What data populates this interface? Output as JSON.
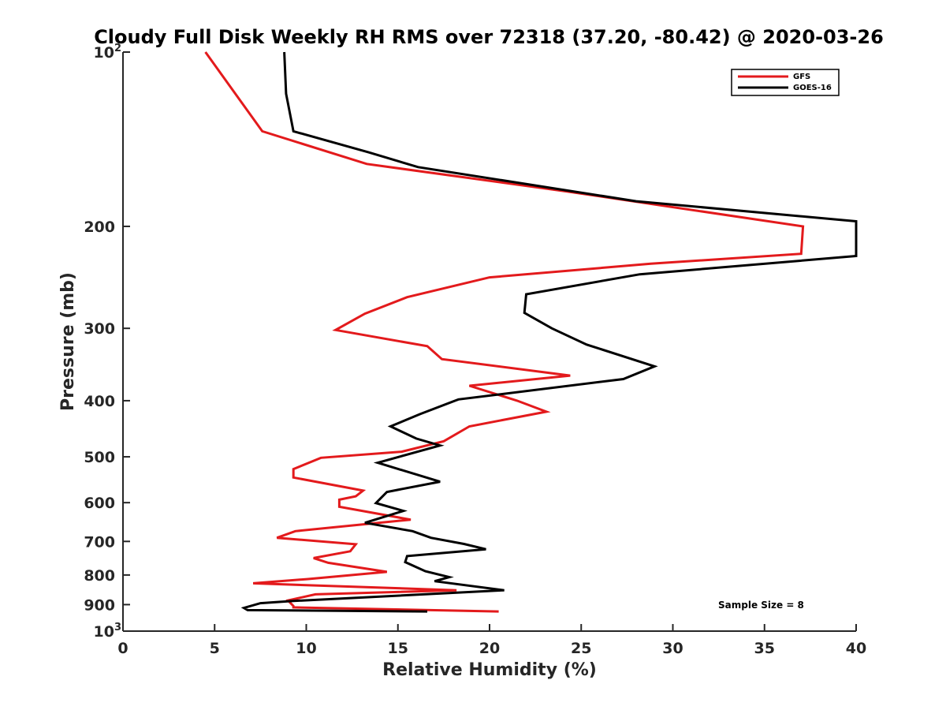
{
  "chart_data": {
    "type": "line",
    "title": "Cloudy Full Disk Weekly RH RMS over 72318 (37.20, -80.42) @ 2020-03-26",
    "xlabel": "Relative Humidity (%)",
    "ylabel": "Pressure (mb)",
    "xlim": [
      0,
      40
    ],
    "ylim": [
      100,
      1000
    ],
    "y_scale": "log",
    "y_reversed": true,
    "x_ticks": [
      0,
      5,
      10,
      15,
      20,
      25,
      30,
      35,
      40
    ],
    "y_ticks": [
      {
        "value": 100,
        "label": "10",
        "exp": "2"
      },
      {
        "value": 200,
        "label": "200"
      },
      {
        "value": 300,
        "label": "300"
      },
      {
        "value": 400,
        "label": "400"
      },
      {
        "value": 500,
        "label": "500"
      },
      {
        "value": 600,
        "label": "600"
      },
      {
        "value": 700,
        "label": "700"
      },
      {
        "value": 800,
        "label": "800"
      },
      {
        "value": 900,
        "label": "900"
      },
      {
        "value": 1000,
        "label": "10",
        "exp": "3"
      }
    ],
    "legend_position": "top-right",
    "annotation": "Sample Size = 8",
    "series": [
      {
        "name": "GFS",
        "color": "#e31a1c",
        "points": [
          [
            4.5,
            100
          ],
          [
            7.6,
            137
          ],
          [
            13.3,
            156
          ],
          [
            24.2,
            174
          ],
          [
            37.1,
            200
          ],
          [
            37.0,
            223
          ],
          [
            28.8,
            232
          ],
          [
            20.0,
            245
          ],
          [
            15.5,
            265
          ],
          [
            13.2,
            283
          ],
          [
            11.6,
            302
          ],
          [
            16.6,
            322
          ],
          [
            17.4,
            339
          ],
          [
            24.4,
            362
          ],
          [
            18.9,
            377
          ],
          [
            21.5,
            400
          ],
          [
            23.1,
            418
          ],
          [
            18.9,
            443
          ],
          [
            17.5,
            470
          ],
          [
            15.2,
            490
          ],
          [
            10.8,
            502
          ],
          [
            9.3,
            525
          ],
          [
            9.3,
            543
          ],
          [
            13.1,
            572
          ],
          [
            12.7,
            585
          ],
          [
            11.8,
            593
          ],
          [
            11.8,
            610
          ],
          [
            15.7,
            642
          ],
          [
            9.4,
            672
          ],
          [
            8.4,
            690
          ],
          [
            12.7,
            708
          ],
          [
            12.4,
            728
          ],
          [
            10.4,
            748
          ],
          [
            11.2,
            762
          ],
          [
            14.4,
            790
          ],
          [
            10.1,
            813
          ],
          [
            7.1,
            827
          ],
          [
            18.2,
            850
          ],
          [
            10.5,
            864
          ],
          [
            9.0,
            885
          ],
          [
            9.3,
            905
          ],
          [
            9.3,
            910
          ],
          [
            20.5,
            925
          ]
        ]
      },
      {
        "name": "GOES-16",
        "color": "#000000",
        "points": [
          [
            8.8,
            100
          ],
          [
            8.9,
            118
          ],
          [
            9.3,
            137
          ],
          [
            13.4,
            149
          ],
          [
            16.1,
            158
          ],
          [
            28.0,
            181
          ],
          [
            40.0,
            196
          ],
          [
            40.0,
            225
          ],
          [
            28.2,
            242
          ],
          [
            22.0,
            262
          ],
          [
            21.9,
            282
          ],
          [
            23.4,
            300
          ],
          [
            25.3,
            320
          ],
          [
            29.0,
            349
          ],
          [
            27.3,
            367
          ],
          [
            18.3,
            398
          ],
          [
            16.2,
            422
          ],
          [
            14.6,
            443
          ],
          [
            16.0,
            465
          ],
          [
            17.3,
            478
          ],
          [
            13.9,
            512
          ],
          [
            17.3,
            552
          ],
          [
            14.4,
            575
          ],
          [
            14.1,
            588
          ],
          [
            13.8,
            601
          ],
          [
            15.3,
            620
          ],
          [
            13.2,
            650
          ],
          [
            15.8,
            672
          ],
          [
            16.8,
            690
          ],
          [
            18.6,
            707
          ],
          [
            19.8,
            722
          ],
          [
            15.5,
            742
          ],
          [
            15.4,
            760
          ],
          [
            16.5,
            788
          ],
          [
            17.8,
            807
          ],
          [
            17.0,
            820
          ],
          [
            20.8,
            850
          ],
          [
            9.3,
            887
          ],
          [
            7.5,
            895
          ],
          [
            6.6,
            912
          ],
          [
            6.8,
            920
          ],
          [
            16.6,
            925
          ]
        ]
      }
    ]
  }
}
